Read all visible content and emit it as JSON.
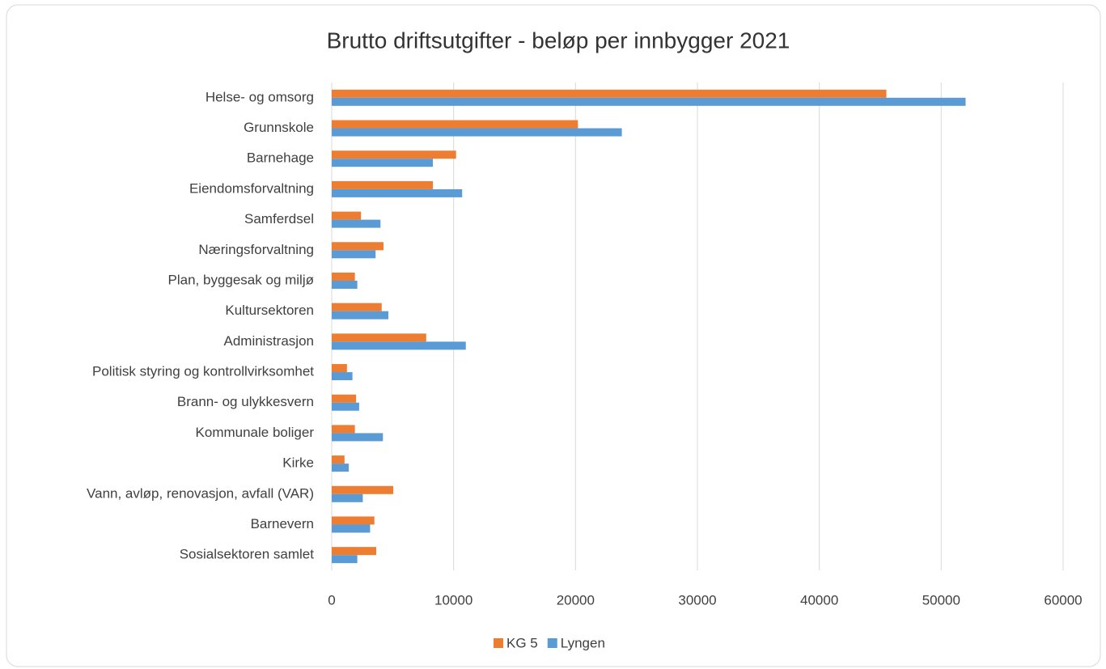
{
  "chart_data": {
    "type": "barh",
    "title": "Brutto driftsutgifter - beløp per innbygger 2021",
    "categories": [
      "Helse- og omsorg",
      "Grunnskole",
      "Barnehage",
      "Eiendomsforvaltning",
      "Samferdsel",
      "Næringsforvaltning",
      "Plan, byggesak og miljø",
      "Kultursektoren",
      "Administrasjon",
      "Politisk styring og kontrollvirksomhet",
      "Brann- og ulykkesvern",
      "Kommunale boliger",
      "Kirke",
      "Vann, avløp, renovasjon, avfall (VAR)",
      "Barnevern",
      "Sosialsektoren samlet"
    ],
    "series": [
      {
        "name": "KG 5",
        "color": "#ed7d31",
        "values": [
          45500,
          20200,
          10200,
          8300,
          2400,
          4250,
          1900,
          4100,
          7750,
          1250,
          2000,
          1900,
          1050,
          5050,
          3500,
          3650
        ]
      },
      {
        "name": "Lyngen",
        "color": "#5b9bd5",
        "values": [
          52000,
          23800,
          8300,
          10700,
          4000,
          3600,
          2100,
          4650,
          11000,
          1700,
          2250,
          4200,
          1400,
          2550,
          3150,
          2100
        ]
      }
    ],
    "xlim": [
      0,
      60000
    ],
    "xticks": [
      0,
      10000,
      20000,
      30000,
      40000,
      50000,
      60000
    ],
    "grid": true,
    "legend": "bottom"
  }
}
